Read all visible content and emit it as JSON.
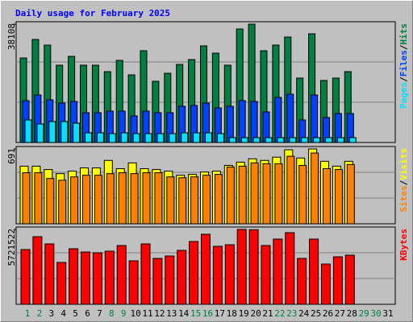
{
  "chart_data": [
    {
      "type": "bar",
      "title": "Daily usage for February 2025",
      "categories": [
        "1",
        "2",
        "3",
        "4",
        "5",
        "6",
        "7",
        "8",
        "9",
        "10",
        "11",
        "12",
        "13",
        "14",
        "15",
        "16",
        "17",
        "18",
        "19",
        "20",
        "21",
        "22",
        "23",
        "24",
        "25",
        "26",
        "27",
        "28",
        "29",
        "30",
        "31"
      ],
      "label_colors": [
        "#008040",
        "#008040",
        "#000000",
        "#000000",
        "#000000",
        "#000000",
        "#000000",
        "#008040",
        "#008040",
        "#000000",
        "#000000",
        "#000000",
        "#000000",
        "#000000",
        "#008040",
        "#008040",
        "#000000",
        "#000000",
        "#000000",
        "#000000",
        "#000000",
        "#008040",
        "#008040",
        "#000000",
        "#000000",
        "#000000",
        "#000000",
        "#000000",
        "#008040",
        "#008040",
        "#000000"
      ],
      "legend_separator": "/",
      "ylim": [
        0,
        38108
      ],
      "yticks": [
        38108
      ],
      "series": [
        {
          "name": "Hits",
          "color": "#008040",
          "values": [
            27216,
            33178,
            31363,
            24883,
            27734,
            24883,
            24883,
            22810,
            26438,
            21773,
            29549,
            19699,
            22291,
            25142,
            26698,
            31104,
            28771,
            24883,
            36547,
            38108,
            29549,
            31363,
            33955,
            20736,
            34992,
            19958,
            20736,
            22810,
            null,
            null,
            null
          ]
        },
        {
          "name": "Files",
          "color": "#0040ff",
          "values": [
            13478,
            15293,
            13738,
            12701,
            13219,
            9590,
            9590,
            10109,
            10109,
            8554,
            10109,
            9590,
            9590,
            11664,
            11923,
            12701,
            11146,
            11664,
            13478,
            13219,
            9850,
            14515,
            15552,
            7258,
            15293,
            8035,
            9331,
            9331,
            null,
            null,
            null
          ]
        },
        {
          "name": "Pages",
          "color": "#00e0ff",
          "values": [
            7258,
            5962,
            6739,
            6739,
            6221,
            3110,
            3110,
            2851,
            3110,
            2851,
            2851,
            2851,
            2851,
            3110,
            3110,
            3110,
            2851,
            1555,
            1555,
            1555,
            1555,
            1555,
            1555,
            1555,
            1555,
            1555,
            1555,
            1555,
            null,
            null,
            null
          ]
        }
      ]
    },
    {
      "type": "bar",
      "ylim": [
        0,
        691
      ],
      "yticks": [
        691
      ],
      "series": [
        {
          "name": "Visits",
          "color": "#ffff00",
          "values": [
            532,
            532,
            501,
            463,
            486,
            516,
            516,
            585,
            509,
            562,
            509,
            501,
            486,
            448,
            456,
            478,
            486,
            539,
            569,
            600,
            585,
            615,
            683,
            607,
            691,
            577,
            532,
            577,
            null,
            null,
            null
          ]
        },
        {
          "name": "Sites",
          "color": "#ff8000",
          "values": [
            471,
            471,
            418,
            402,
            433,
            448,
            448,
            463,
            471,
            463,
            471,
            471,
            433,
            425,
            433,
            448,
            456,
            524,
            532,
            562,
            554,
            554,
            623,
            539,
            653,
            509,
            501,
            547,
            null,
            null,
            null
          ]
        }
      ]
    },
    {
      "type": "bar",
      "ylim": [
        0,
        5721522
      ],
      "yticks": [
        5721522
      ],
      "series": [
        {
          "name": "KBytes",
          "color": "#ff0000",
          "values": [
            4183496,
            5167848,
            4614150,
            3199144,
            4245018,
            3998930,
            3937408,
            4060452,
            4491106,
            3322188,
            4614150,
            3506754,
            3691320,
            4121974,
            4798716,
            5352414,
            4429584,
            4552628,
            5721522,
            5700000,
            4491106,
            4983282,
            5475458,
            3506754,
            4983282,
            3076100,
            3629798,
            3752842,
            null,
            null,
            null
          ]
        }
      ]
    }
  ]
}
